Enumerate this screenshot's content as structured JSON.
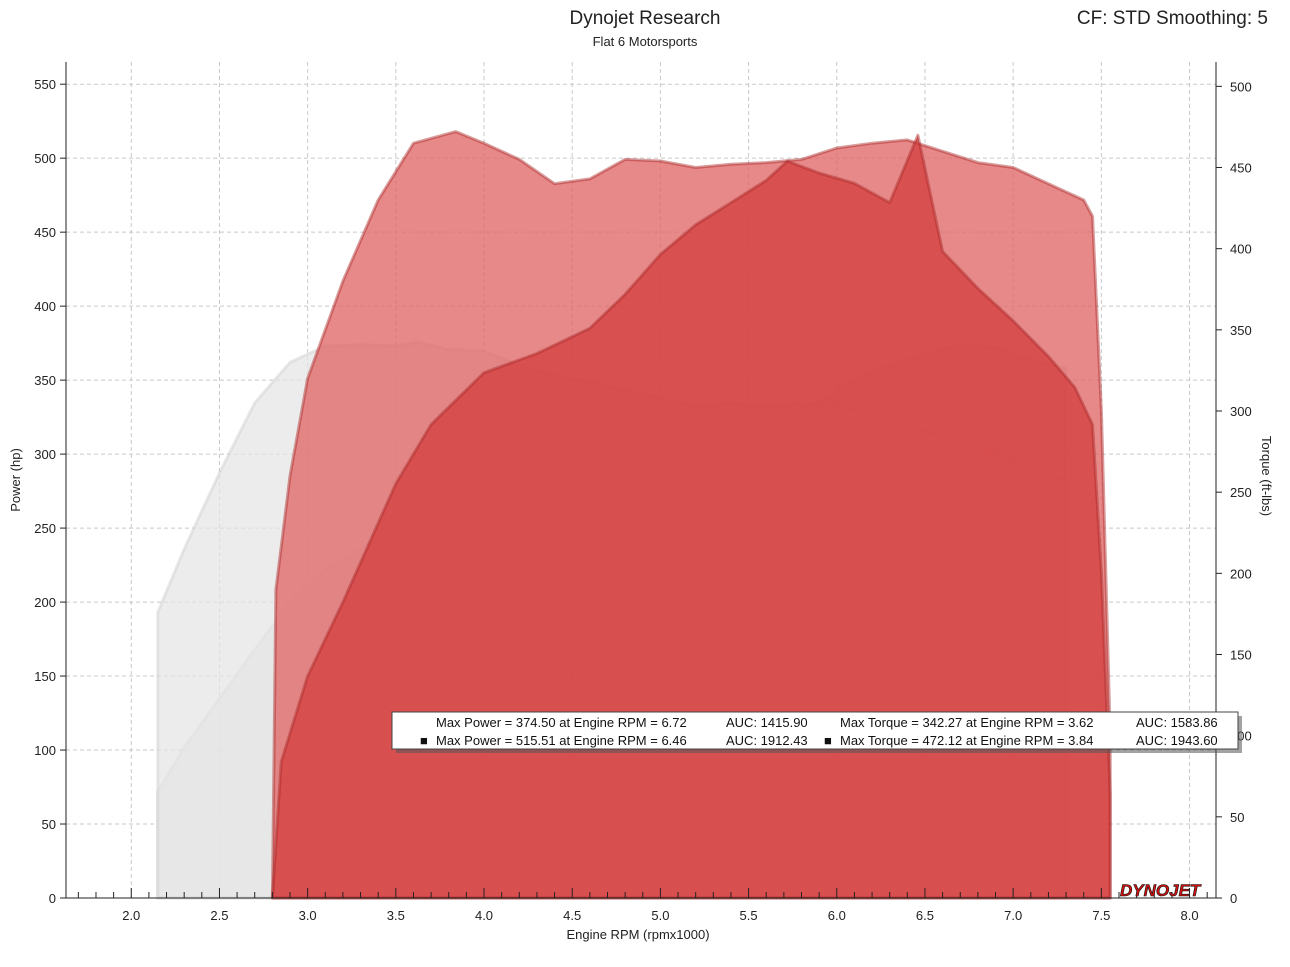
{
  "header": {
    "title": "Dynojet Research",
    "subtitle": "Flat 6 Motorsports",
    "cf_info": "CF: STD Smoothing: 5"
  },
  "colors": {
    "run1_fill": "#e4e4e4",
    "run1_edge": "#cfcfcf",
    "run2_power_fill": "#d43a3a",
    "run2_torque_fill": "#e06868",
    "run2_edge": "#a82828",
    "plot_bg": "#ffffff",
    "grid": "#c8c8c8"
  },
  "logo": {
    "text": "DYNOJET"
  },
  "chart_data": {
    "type": "area",
    "xlabel": "Engine RPM (rpmx1000)",
    "ylabel": "Power (hp)",
    "y2label": "Torque (ft-lbs)",
    "xlim": [
      1.63,
      8.15
    ],
    "ylim": [
      0,
      565
    ],
    "y2lim": [
      0,
      515
    ],
    "xticks": [
      2.0,
      2.5,
      3.0,
      3.5,
      4.0,
      4.5,
      5.0,
      5.5,
      6.0,
      6.5,
      7.0,
      7.5,
      8.0
    ],
    "xtick_labels": [
      "2.0",
      "2.5",
      "3.0",
      "3.5",
      "4.0",
      "4.5",
      "5.0",
      "5.5",
      "6.0",
      "6.5",
      "7.0",
      "7.5",
      "8.0"
    ],
    "yticks": [
      0,
      50,
      100,
      150,
      200,
      250,
      300,
      350,
      400,
      450,
      500,
      550
    ],
    "ytick_labels": [
      "0",
      "50",
      "100",
      "150",
      "200",
      "250",
      "300",
      "350",
      "400",
      "450",
      "500",
      "550"
    ],
    "y2ticks": [
      0,
      50,
      100,
      150,
      200,
      250,
      300,
      350,
      400,
      450,
      500
    ],
    "y2tick_labels": [
      "0",
      "50",
      "100",
      "150",
      "200",
      "250",
      "300",
      "350",
      "400",
      "450",
      "500"
    ],
    "grid": true,
    "series": [
      {
        "axis": "y",
        "x": [
          2.15,
          2.15,
          2.3,
          2.5,
          2.7,
          2.9,
          3.1,
          3.3,
          3.5,
          3.7,
          3.9,
          4.1,
          4.3,
          4.5,
          4.7,
          4.9,
          5.1,
          5.3,
          5.5,
          5.7,
          5.9,
          6.1,
          6.3,
          6.5,
          6.72,
          6.9,
          7.1,
          7.3,
          7.3
        ],
        "values": [
          0,
          72,
          102,
          135,
          168,
          200,
          222,
          236,
          248,
          258,
          266,
          271,
          276,
          281,
          286,
          296,
          310,
          320,
          325,
          328,
          335,
          350,
          360,
          368,
          374.5,
          372,
          364,
          358,
          0
        ]
      },
      {
        "axis": "y2",
        "x": [
          2.15,
          2.15,
          2.3,
          2.5,
          2.7,
          2.9,
          3.1,
          3.3,
          3.5,
          3.62,
          3.8,
          4.0,
          4.2,
          4.4,
          4.6,
          4.8,
          5.0,
          5.2,
          5.4,
          5.6,
          5.8,
          6.0,
          6.2,
          6.4,
          6.6,
          6.8,
          7.0,
          7.2,
          7.3,
          7.3
        ],
        "values": [
          0,
          176,
          215,
          262,
          305,
          330,
          340,
          341,
          340,
          342.27,
          338,
          337,
          328,
          322,
          318,
          313,
          308,
          303,
          305,
          303,
          305,
          303,
          298,
          290,
          285,
          278,
          270,
          260,
          257,
          0
        ]
      },
      {
        "axis": "y2",
        "x": [
          2.8,
          2.82,
          2.9,
          3.0,
          3.2,
          3.4,
          3.6,
          3.84,
          4.0,
          4.2,
          4.4,
          4.6,
          4.8,
          5.0,
          5.2,
          5.4,
          5.6,
          5.8,
          6.0,
          6.2,
          6.4,
          6.6,
          6.8,
          7.0,
          7.2,
          7.4,
          7.45,
          7.5,
          7.55,
          7.55
        ],
        "values": [
          0,
          190,
          260,
          320,
          380,
          430,
          465,
          472.12,
          465,
          455,
          440,
          443,
          455,
          454,
          450,
          452,
          453,
          455,
          462,
          465,
          467,
          460,
          453,
          450,
          440,
          430,
          420,
          300,
          100,
          0
        ]
      },
      {
        "axis": "y",
        "x": [
          2.8,
          2.85,
          3.0,
          3.2,
          3.5,
          3.7,
          4.0,
          4.3,
          4.6,
          4.8,
          5.0,
          5.2,
          5.4,
          5.6,
          5.72,
          5.9,
          6.1,
          6.3,
          6.46,
          6.6,
          6.8,
          7.0,
          7.2,
          7.35,
          7.45,
          7.5,
          7.55,
          7.55
        ],
        "values": [
          0,
          92,
          150,
          200,
          280,
          320,
          355,
          368,
          385,
          408,
          435,
          455,
          470,
          485,
          498,
          490,
          483,
          470,
          515.51,
          437,
          412,
          390,
          366,
          345,
          320,
          220,
          70,
          0
        ]
      }
    ],
    "legend": [
      {
        "marker": "",
        "power_text": "Max Power = 374.50 at Engine RPM = 6.72",
        "power_auc": "AUC: 1415.90",
        "torque_marker": "",
        "torque_text": "Max Torque = 342.27 at Engine RPM = 3.62",
        "torque_auc": "AUC: 1583.86"
      },
      {
        "marker": "■",
        "power_text": "Max Power = 515.51 at Engine RPM = 6.46",
        "power_auc": "AUC: 1912.43",
        "torque_marker": "■",
        "torque_text": "Max Torque = 472.12 at Engine RPM = 3.84",
        "torque_auc": "AUC: 1943.60"
      }
    ]
  }
}
